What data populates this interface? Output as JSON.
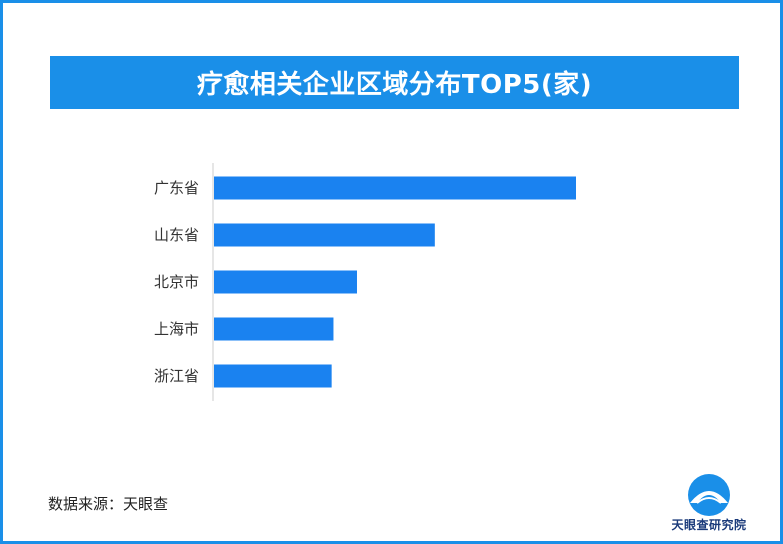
{
  "title": "疗愈相关企业区域分布TOP5(家)",
  "source": "数据来源：天眼查",
  "logo": {
    "text": "天眼查研究院",
    "icon": "tianyancha-logo-icon"
  },
  "colors": {
    "accent": "#1a8fe8",
    "bar": "#1a82f0",
    "axis": "#cccccc",
    "label": "#333333"
  },
  "chart_data": {
    "type": "bar",
    "orientation": "horizontal",
    "categories": [
      "广东省",
      "山东省",
      "北京市",
      "上海市",
      "浙江省"
    ],
    "values": [
      100,
      61,
      39.5,
      33,
      32.5
    ],
    "title": "疗愈相关企业区域分布TOP5(家)",
    "xlabel": "",
    "ylabel": "",
    "xlim": [
      0,
      100
    ],
    "grid": false,
    "legend": "none"
  }
}
